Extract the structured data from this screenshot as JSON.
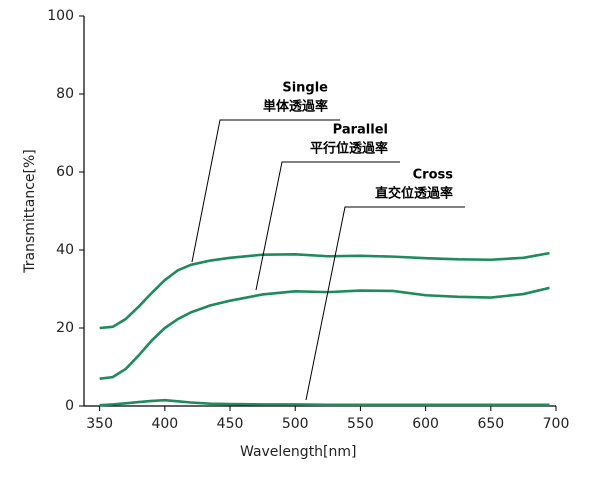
{
  "chart_data": {
    "type": "line",
    "x_label": "Wavelength[nm]",
    "y_label": "Transmittance[%]",
    "x": [
      350,
      360,
      370,
      380,
      390,
      400,
      410,
      420,
      435,
      450,
      475,
      500,
      525,
      550,
      575,
      600,
      625,
      650,
      675,
      695
    ],
    "series": [
      {
        "name": "Single",
        "color": "#1f8a5c",
        "values": [
          20,
          20.3,
          22.3,
          25.5,
          29,
          32.3,
          34.8,
          36.2,
          37.3,
          38,
          38.8,
          38.9,
          38.4,
          38.5,
          38.3,
          37.9,
          37.6,
          37.5,
          38,
          39.2
        ]
      },
      {
        "name": "Parallel",
        "color": "#1f8a5c",
        "values": [
          7,
          7.4,
          9.5,
          13,
          16.8,
          20,
          22.3,
          24,
          25.8,
          27,
          28.6,
          29.4,
          29.2,
          29.6,
          29.5,
          28.4,
          28,
          27.8,
          28.7,
          30.3
        ]
      },
      {
        "name": "Cross",
        "color": "#1f8a5c",
        "values": [
          0.2,
          0.4,
          0.7,
          1,
          1.3,
          1.5,
          1.2,
          0.9,
          0.6,
          0.5,
          0.4,
          0.4,
          0.3,
          0.3,
          0.3,
          0.3,
          0.3,
          0.3,
          0.3,
          0.3
        ]
      }
    ],
    "annotations": [
      {
        "series": "Single",
        "label": "単体透過率"
      },
      {
        "series": "Parallel",
        "label": "平行位透過率"
      },
      {
        "series": "Cross",
        "label": "直交位透過率"
      }
    ],
    "xlim": [
      338,
      700
    ],
    "xticks": [
      350,
      400,
      450,
      500,
      550,
      600,
      650,
      700
    ],
    "ylim": [
      0,
      100
    ],
    "yticks": [
      0,
      20,
      40,
      60,
      80,
      100
    ]
  }
}
